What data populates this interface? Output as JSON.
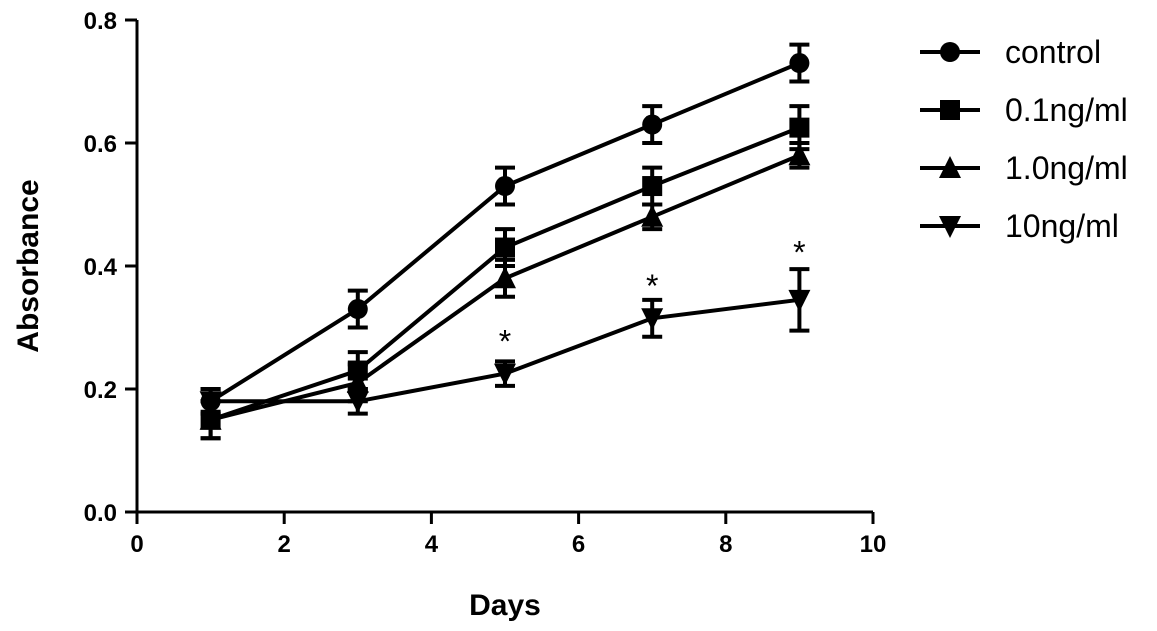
{
  "chart_data": {
    "type": "line",
    "title": "",
    "xlabel": "Days",
    "ylabel": "Absorbance",
    "xlim": [
      0,
      10
    ],
    "ylim": [
      0,
      0.8
    ],
    "xticks": [
      "0",
      "2",
      "4",
      "6",
      "8",
      "10"
    ],
    "xtick_values": [
      0,
      2,
      4,
      6,
      8,
      10
    ],
    "yticks": [
      "0.0",
      "0.2",
      "0.4",
      "0.6",
      "0.8"
    ],
    "ytick_values": [
      0,
      0.2,
      0.4,
      0.6,
      0.8
    ],
    "grid": false,
    "legend_position": "top-right",
    "x": [
      1,
      3,
      5,
      7,
      9
    ],
    "series": [
      {
        "name": "control",
        "marker": "circle",
        "values": [
          0.18,
          0.33,
          0.53,
          0.63,
          0.73
        ],
        "errors": [
          0.02,
          0.03,
          0.03,
          0.03,
          0.03
        ]
      },
      {
        "name": "0.1ng/ml",
        "marker": "square",
        "values": [
          0.15,
          0.23,
          0.43,
          0.53,
          0.625
        ],
        "errors": [
          0.03,
          0.03,
          0.03,
          0.03,
          0.035
        ]
      },
      {
        "name": "1.0ng/ml",
        "marker": "triangle-up",
        "values": [
          0.15,
          0.21,
          0.38,
          0.48,
          0.58
        ],
        "errors": [
          0.03,
          0.03,
          0.03,
          0.02,
          0.02
        ]
      },
      {
        "name": "10ng/ml",
        "marker": "triangle-down",
        "values": [
          0.18,
          0.18,
          0.225,
          0.315,
          0.345
        ],
        "errors": [
          0.02,
          0.02,
          0.02,
          0.03,
          0.05
        ]
      }
    ],
    "annotations": [
      {
        "x": 5,
        "y": 0.295,
        "text": "*"
      },
      {
        "x": 7,
        "y": 0.385,
        "text": "*"
      },
      {
        "x": 9,
        "y": 0.44,
        "text": "*"
      }
    ]
  }
}
